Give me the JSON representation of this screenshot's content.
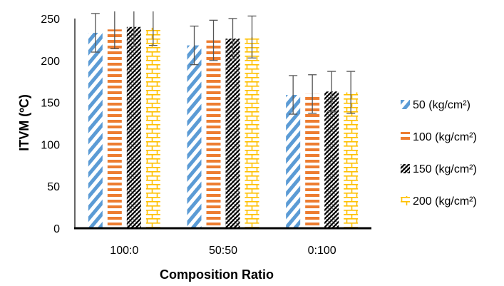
{
  "chart_data": {
    "type": "bar",
    "xlabel": "Composition Ratio",
    "ylabel": "ITVM (ºC)",
    "ylim": [
      0,
      250
    ],
    "yticks": [
      "0",
      "50",
      "100",
      "150",
      "200",
      "250"
    ],
    "categories": [
      "100:0",
      "50:50",
      "0:100"
    ],
    "grid": false,
    "error_bars": true,
    "legend_position": "right",
    "series": [
      {
        "name": "50 (kg/cm²)",
        "values": [
          233,
          218,
          159
        ],
        "error": [
          23,
          23,
          23
        ],
        "color": "#5b9bd5",
        "pattern": "diagonal-stripes"
      },
      {
        "name": "100 (kg/cm²)",
        "values": [
          237,
          224,
          160
        ],
        "error": [
          23,
          24,
          23
        ],
        "color": "#ed7d31",
        "pattern": "horizontal-stripes"
      },
      {
        "name": "150 (kg/cm²)",
        "values": [
          240,
          226,
          163
        ],
        "error": [
          23,
          24,
          24
        ],
        "color": "#000000",
        "pattern": "zigzag"
      },
      {
        "name": "200 (kg/cm²)",
        "values": [
          239,
          228,
          162
        ],
        "error": [
          21,
          25,
          25
        ],
        "color": "#ffc000",
        "pattern": "brick"
      }
    ]
  }
}
